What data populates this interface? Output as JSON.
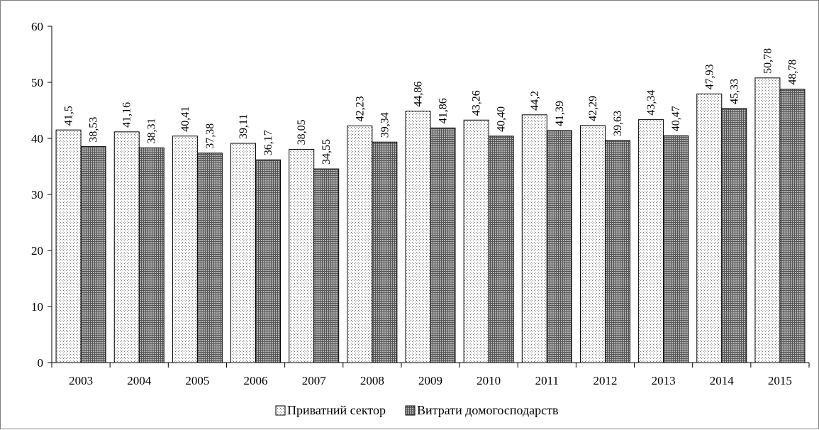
{
  "chart_data": {
    "type": "bar",
    "categories": [
      "2003",
      "2004",
      "2005",
      "2006",
      "2007",
      "2008",
      "2009",
      "2010",
      "2011",
      "2012",
      "2013",
      "2014",
      "2015"
    ],
    "series": [
      {
        "name": "Приватний сектор",
        "values": [
          41.5,
          41.16,
          40.41,
          39.11,
          38.05,
          42.23,
          44.86,
          43.26,
          44.2,
          42.29,
          43.34,
          47.93,
          50.78
        ],
        "labels": [
          "41,5",
          "41,16",
          "40,41",
          "39,11",
          "38,05",
          "42,23",
          "44,86",
          "43,26",
          "44,2",
          "42,29",
          "43,34",
          "47,93",
          "50,78"
        ],
        "pattern": "light-dots"
      },
      {
        "name": "Витрати домогосподарств",
        "values": [
          38.53,
          38.31,
          37.38,
          36.17,
          34.55,
          39.34,
          41.86,
          40.4,
          41.39,
          39.63,
          40.47,
          45.33,
          48.78
        ],
        "labels": [
          "38,53",
          "38,31",
          "37,38",
          "36,17",
          "34,55",
          "39,34",
          "41,86",
          "40,40",
          "41,39",
          "39,63",
          "40,47",
          "45,33",
          "48,78"
        ],
        "pattern": "dark-grid"
      }
    ],
    "yticks": [
      "0",
      "10",
      "20",
      "30",
      "40",
      "50",
      "60"
    ],
    "ylim": [
      0,
      60
    ],
    "grid": false,
    "legend_position": "bottom",
    "title": "",
    "xlabel": "",
    "ylabel": ""
  }
}
